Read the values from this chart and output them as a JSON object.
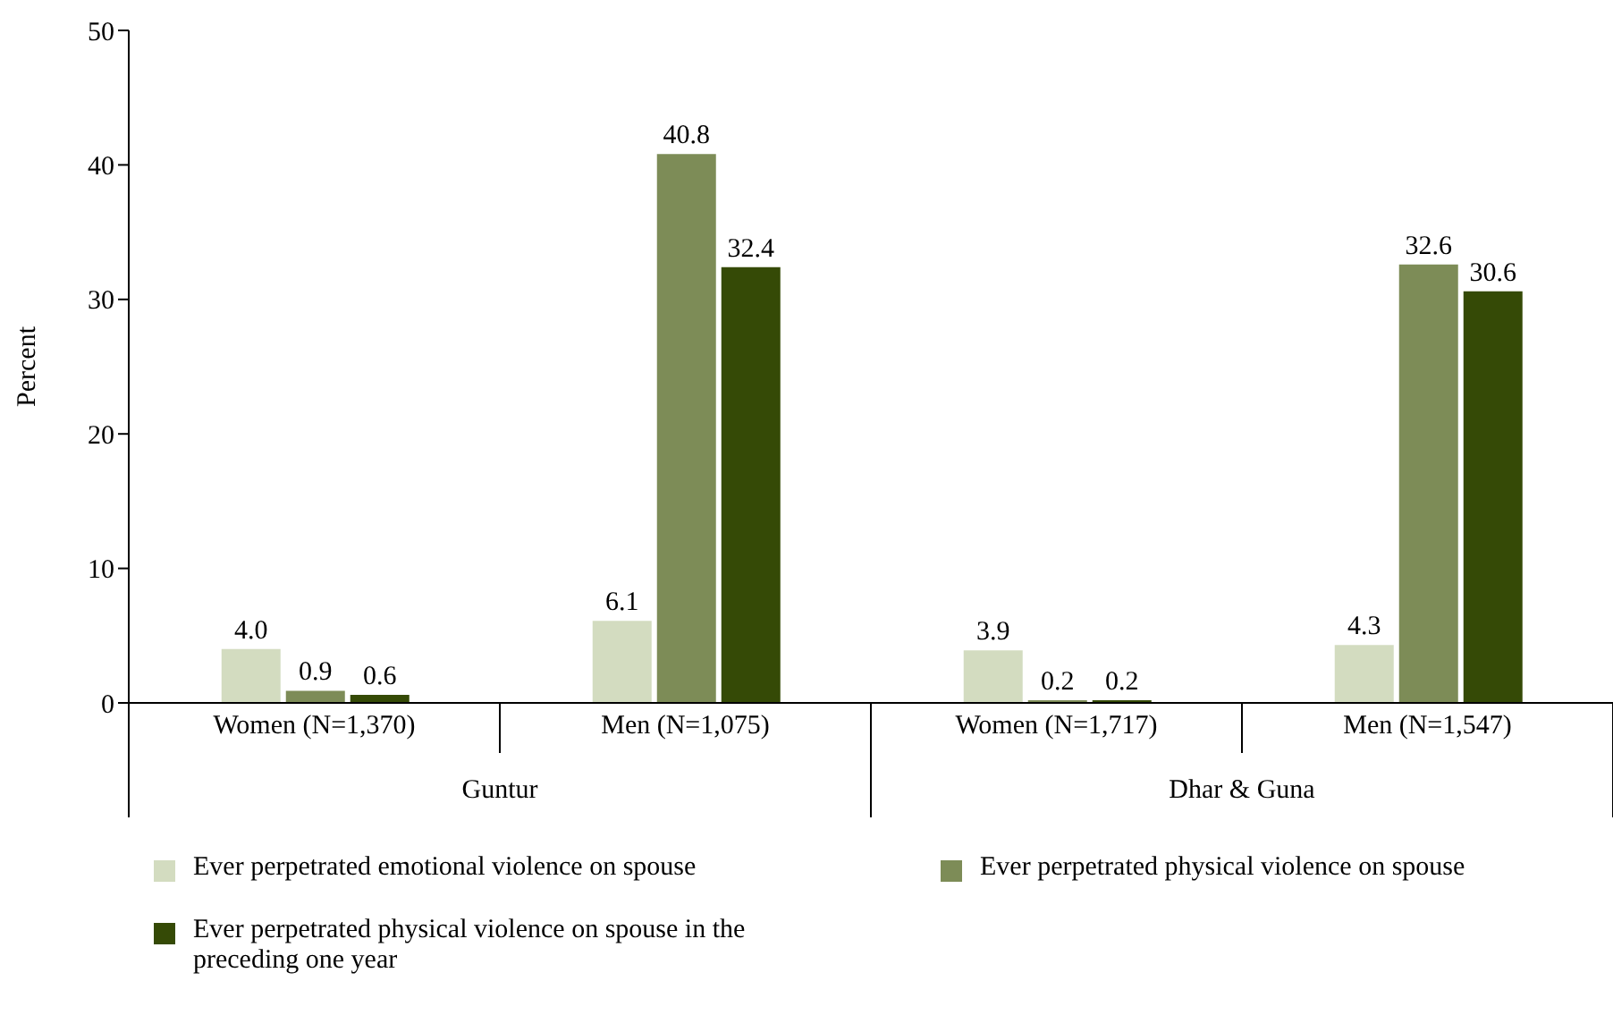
{
  "chart_data": {
    "type": "bar",
    "ylabel": "Percent",
    "categories": [
      "Women (N=1,370)",
      "Men (N=1,075)",
      "Women (N=1,717)",
      "Men (N=1,547)"
    ],
    "series": [
      {
        "name": "Ever perpetrated emotional violence on spouse",
        "color": "#d3dcc0",
        "values": [
          4.0,
          6.1,
          3.9,
          4.3
        ],
        "value_labels": [
          "4.0",
          "6.1",
          "3.9",
          "4.3"
        ]
      },
      {
        "name": "Ever perpetrated physical violence on spouse",
        "color": "#7d8c57",
        "values": [
          0.9,
          40.8,
          0.2,
          32.6
        ],
        "value_labels": [
          "0.9",
          "40.8",
          "0.2",
          "32.6"
        ]
      },
      {
        "name": "Ever perpetrated physical violence on spouse in the preceding one year",
        "color": "#354a06",
        "values": [
          0.6,
          32.4,
          0.2,
          30.6
        ],
        "value_labels": [
          "0.6",
          "32.4",
          "0.2",
          "30.6"
        ]
      }
    ],
    "annotations": [
      "Guntur",
      "Dhar & Guna"
    ],
    "ylim": [
      0,
      50
    ],
    "yticks": [
      0,
      10,
      20,
      30,
      40,
      50
    ],
    "grid": false,
    "legend": "bottom"
  }
}
